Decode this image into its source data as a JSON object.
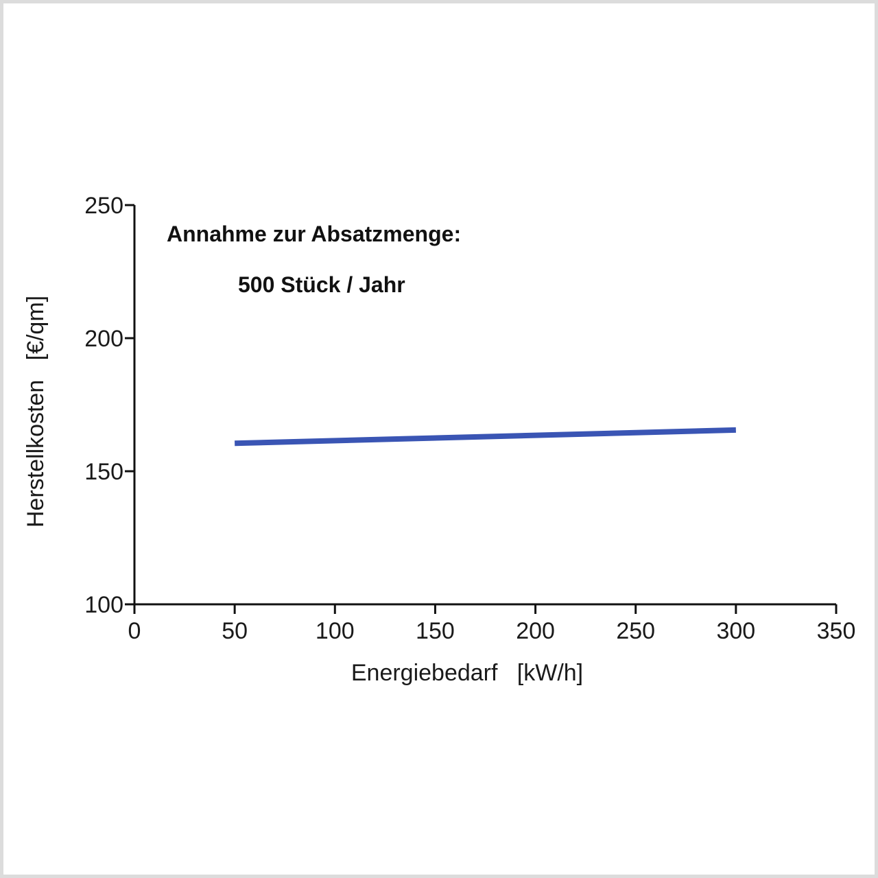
{
  "chart_data": {
    "type": "line",
    "xlabel": "Energiebedarf   [kW/h]",
    "ylabel": "Herstellkosten   [€/qm]",
    "xlim": [
      0,
      350
    ],
    "ylim": [
      100,
      250
    ],
    "xticks": [
      0,
      50,
      100,
      150,
      200,
      250,
      300,
      350
    ],
    "yticks": [
      100,
      150,
      200,
      250
    ],
    "grid": false,
    "annotations": [
      "Annahme zur Absatzmenge:",
      "500 Stück / Jahr"
    ],
    "series": [
      {
        "color": "#3a55b4",
        "x": [
          50,
          300
        ],
        "y": [
          160.5,
          165.5
        ]
      }
    ]
  }
}
